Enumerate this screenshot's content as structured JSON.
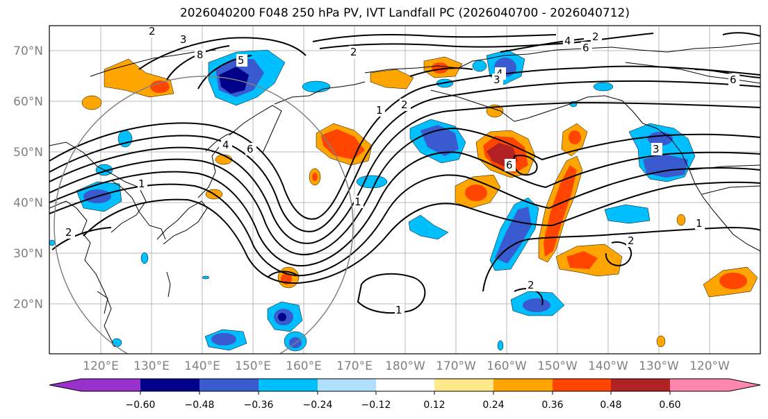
{
  "title": "2026040200 F048 250 hPa PV, IVT Landfall PC (2026040700 - 2026040712)",
  "lat_ticks": [
    "70°N",
    "60°N",
    "50°N",
    "40°N",
    "30°N",
    "20°N"
  ],
  "lon_ticks": [
    "120°E",
    "130°E",
    "140°E",
    "150°E",
    "160°E",
    "170°E",
    "180°W",
    "170°W",
    "160°W",
    "150°W",
    "140°W",
    "130°W",
    "120°W"
  ],
  "colorbar": {
    "ticks": [
      "−0.60",
      "−0.48",
      "−0.36",
      "−0.24",
      "−0.12",
      "0.12",
      "0.24",
      "0.36",
      "0.48",
      "0.60"
    ],
    "colors": [
      "#9932cc",
      "#00008b",
      "#3a5bcf",
      "#00bfff",
      "#b0e0ff",
      "#ffffff",
      "#ffe98a",
      "#ffa500",
      "#ff4500",
      "#b22222",
      "#ff86ad"
    ]
  },
  "contour_labels": [
    "2",
    "3",
    "4",
    "6",
    "8",
    "2",
    "1",
    "2",
    "4",
    "6",
    "3",
    "5",
    "6",
    "2",
    "1",
    "1",
    "2",
    "2",
    "4",
    "1",
    "6",
    "3",
    "1",
    "2"
  ]
}
